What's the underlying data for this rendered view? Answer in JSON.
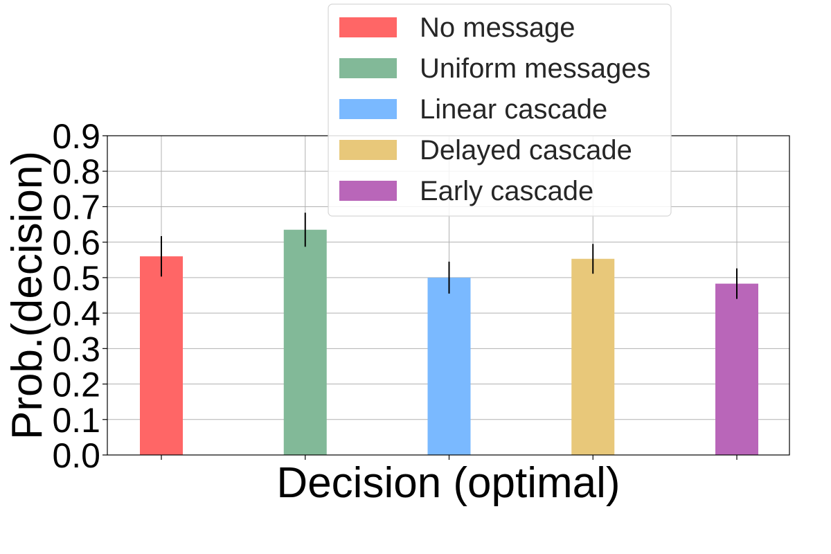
{
  "chart_data": {
    "type": "bar",
    "title": "",
    "xlabel": "Decision (optimal)",
    "ylabel": "Prob.(decision)",
    "ylim": [
      0,
      0.9
    ],
    "yticks": [
      "0.0",
      "0.1",
      "0.2",
      "0.3",
      "0.4",
      "0.5",
      "0.6",
      "0.7",
      "0.8",
      "0.9"
    ],
    "grid": true,
    "legend_position": "top-center",
    "series": [
      {
        "name": "No message",
        "value": 0.56,
        "error": 0.057,
        "color": "#ff6666"
      },
      {
        "name": "Uniform messages",
        "value": 0.635,
        "error": 0.048,
        "color": "#82b998"
      },
      {
        "name": "Linear cascade",
        "value": 0.5,
        "error": 0.045,
        "color": "#7ab9ff"
      },
      {
        "name": "Delayed cascade",
        "value": 0.553,
        "error": 0.042,
        "color": "#e8c87a"
      },
      {
        "name": "Early cascade",
        "value": 0.483,
        "error": 0.043,
        "color": "#b966b9"
      }
    ]
  }
}
